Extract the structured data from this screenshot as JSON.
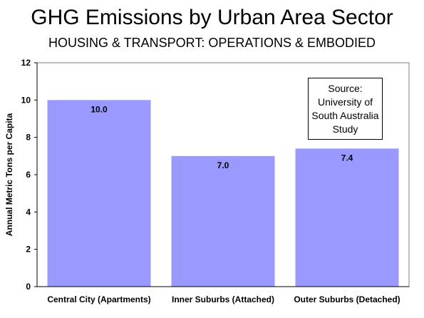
{
  "chart_data": {
    "type": "bar",
    "title": "GHG Emissions by Urban Area Sector",
    "subtitle": "HOUSING & TRANSPORT: OPERATIONS & EMBODIED",
    "xlabel": "",
    "ylabel": "Annual Metric Tons per Capita",
    "categories": [
      "Central City (Apartments)",
      "Inner Suburbs (Attached)",
      "Outer Suburbs (Detached)"
    ],
    "values": [
      10.0,
      7.0,
      7.4
    ],
    "value_labels": [
      "10.0",
      "7.0",
      "7.4"
    ],
    "ylim": [
      0,
      12
    ],
    "yticks": [
      0,
      2,
      4,
      6,
      8,
      10,
      12
    ],
    "grid": false,
    "bar_color": "#9999ff",
    "plot_background": "#ffffff",
    "annotation": {
      "lines": [
        "Source:",
        "University of",
        "South Australia",
        "Study"
      ]
    }
  }
}
